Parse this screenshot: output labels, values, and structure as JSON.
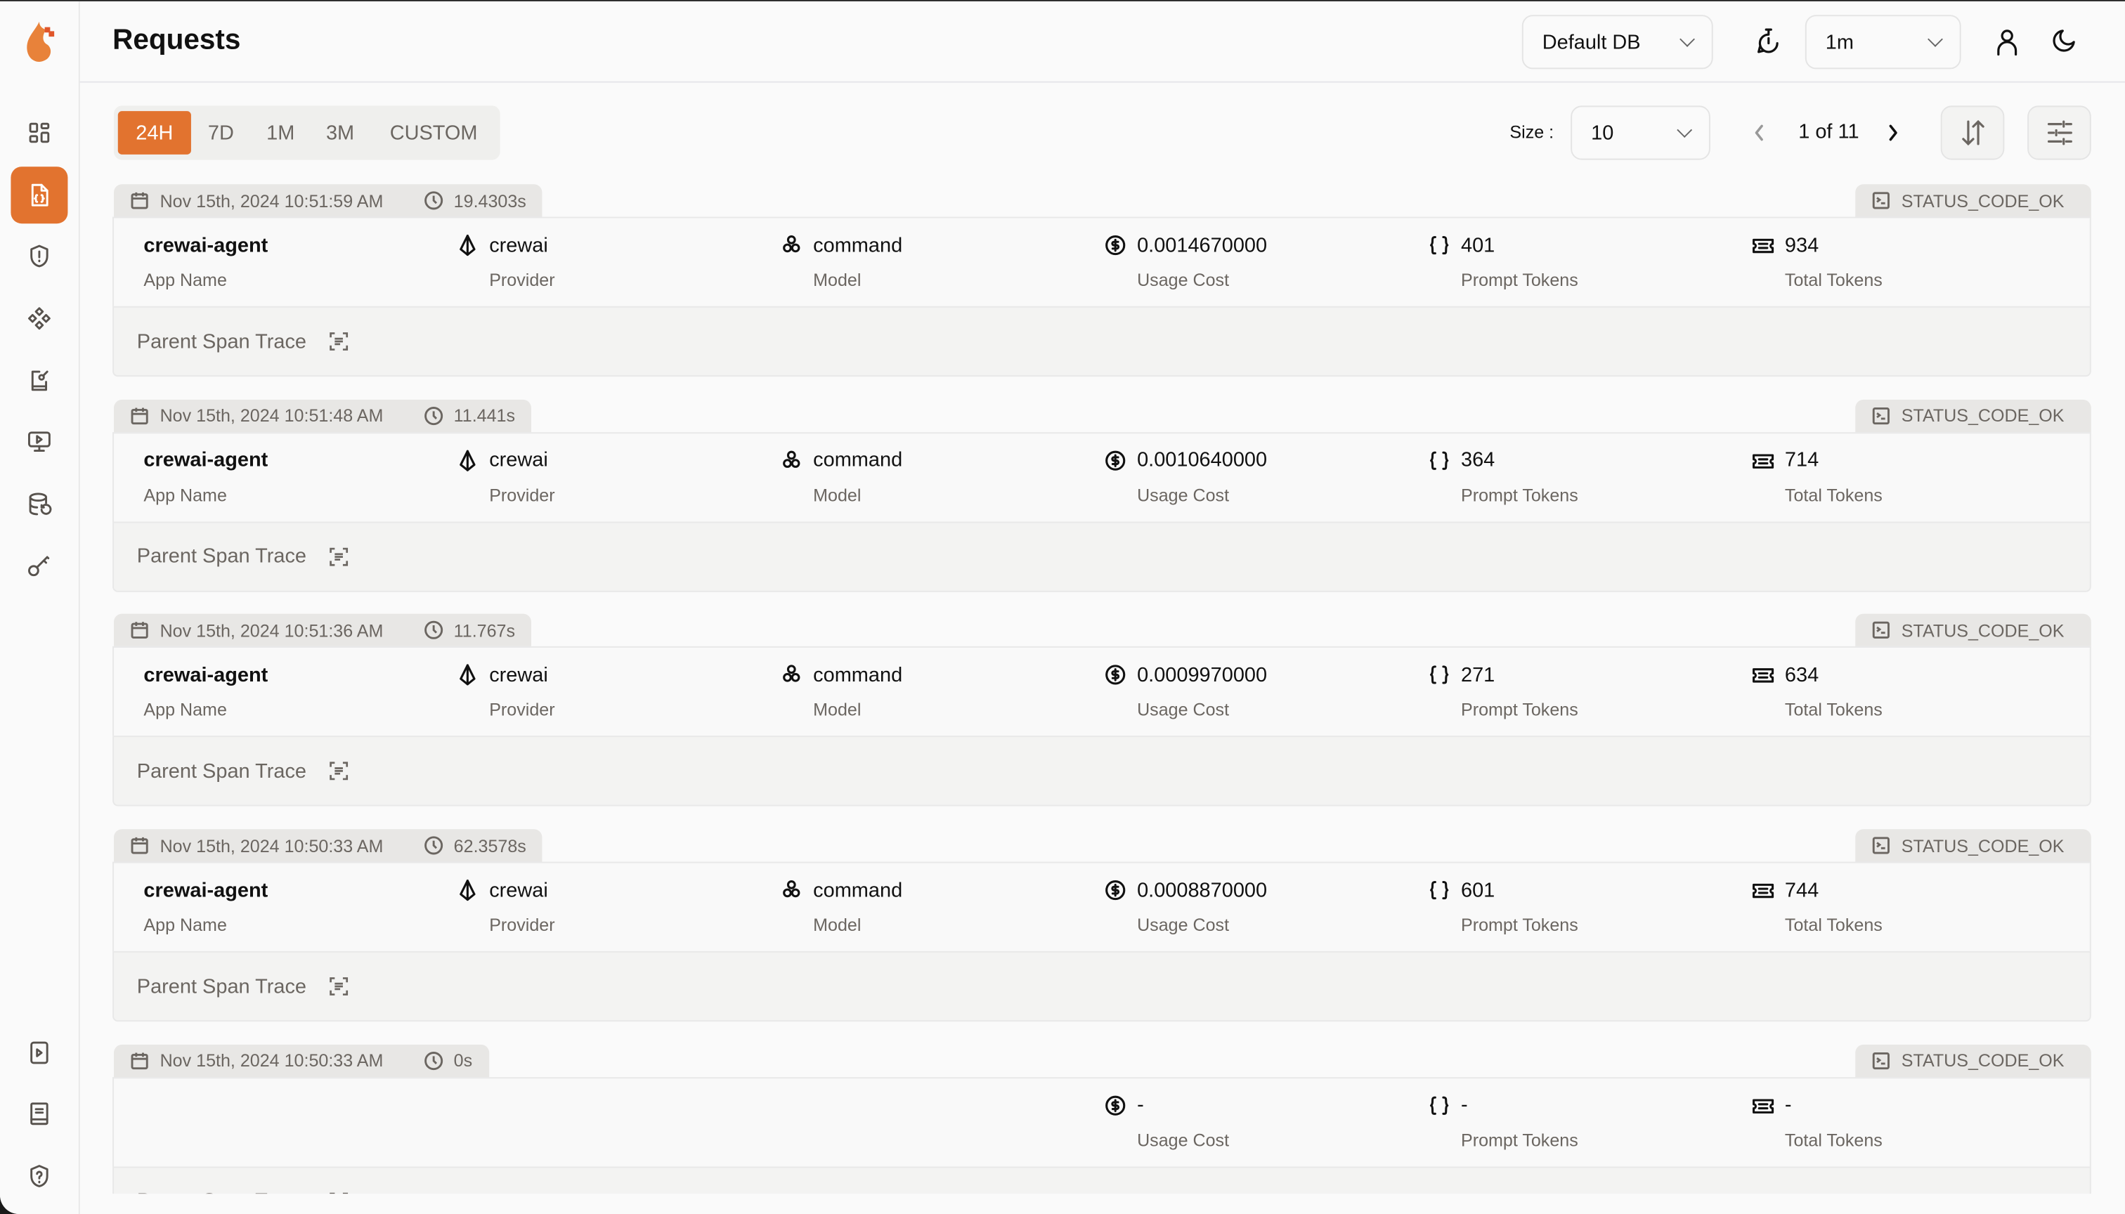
{
  "header": {
    "title": "Requests",
    "db_select": "Default DB",
    "refresh_select": "1m"
  },
  "colors": {
    "accent": "#e2732f",
    "tab_bg": "#e8e7e5"
  },
  "sidebar": {
    "items": [
      {
        "icon": "dashboard-icon"
      },
      {
        "icon": "requests-icon",
        "active": true
      },
      {
        "icon": "exceptions-shield-icon"
      },
      {
        "icon": "prompt-hub-icon"
      },
      {
        "icon": "vault-book-icon"
      },
      {
        "icon": "openground-monitor-icon"
      },
      {
        "icon": "database-config-icon"
      },
      {
        "icon": "api-key-icon"
      }
    ],
    "bottom": [
      {
        "icon": "play-icon"
      },
      {
        "icon": "docs-book-icon"
      },
      {
        "icon": "help-shield-icon"
      }
    ]
  },
  "filters": {
    "ranges": [
      "24H",
      "7D",
      "1M",
      "3M",
      "CUSTOM"
    ],
    "active": "24H"
  },
  "pagination": {
    "size_label": "Size :",
    "size": "10",
    "page_text": "1 of 11"
  },
  "labels": {
    "app_name": "App Name",
    "provider": "Provider",
    "model": "Model",
    "usage_cost": "Usage Cost",
    "prompt_tokens": "Prompt Tokens",
    "total_tokens": "Total Tokens",
    "parent_span": "Parent Span Trace"
  },
  "requests": [
    {
      "timestamp": "Nov 15th, 2024 10:51:59 AM",
      "duration": "19.4303s",
      "status": "STATUS_CODE_OK",
      "app_name": "crewai-agent",
      "provider": "crewai",
      "model": "command",
      "cost": "0.0014670000",
      "prompt_tokens": "401",
      "total_tokens": "934"
    },
    {
      "timestamp": "Nov 15th, 2024 10:51:48 AM",
      "duration": "11.441s",
      "status": "STATUS_CODE_OK",
      "app_name": "crewai-agent",
      "provider": "crewai",
      "model": "command",
      "cost": "0.0010640000",
      "prompt_tokens": "364",
      "total_tokens": "714"
    },
    {
      "timestamp": "Nov 15th, 2024 10:51:36 AM",
      "duration": "11.767s",
      "status": "STATUS_CODE_OK",
      "app_name": "crewai-agent",
      "provider": "crewai",
      "model": "command",
      "cost": "0.0009970000",
      "prompt_tokens": "271",
      "total_tokens": "634"
    },
    {
      "timestamp": "Nov 15th, 2024 10:50:33 AM",
      "duration": "62.3578s",
      "status": "STATUS_CODE_OK",
      "app_name": "crewai-agent",
      "provider": "crewai",
      "model": "command",
      "cost": "0.0008870000",
      "prompt_tokens": "601",
      "total_tokens": "744"
    },
    {
      "timestamp": "Nov 15th, 2024 10:50:33 AM",
      "duration": "0s",
      "status": "STATUS_CODE_OK",
      "app_name": "",
      "provider": "",
      "model": "",
      "cost": "-",
      "prompt_tokens": "-",
      "total_tokens": "-"
    }
  ]
}
